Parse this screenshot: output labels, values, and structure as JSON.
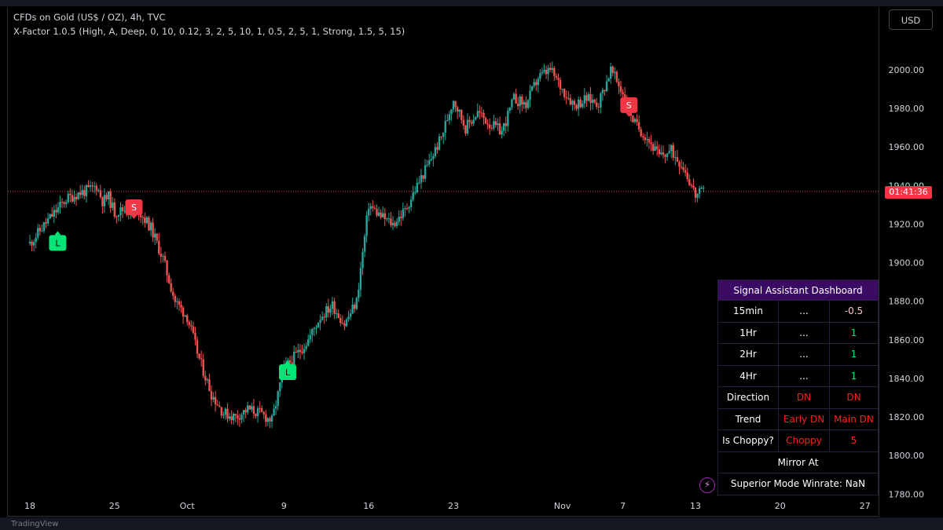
{
  "legend": {
    "symbol_line": "CFDs on Gold (US$ / OZ), 4h, TVC",
    "indicator_line": "X-Factor 1.0.5 (High, A, Deep, 0, 10, 0.12, 3, 2, 5, 10, 1, 0.5, 2, 5, 1, Strong, 1.5, 5, 15)"
  },
  "currency_button": "USD",
  "current_price_countdown": "01:41:36",
  "watermark": "TradingView",
  "colors": {
    "up": "#26a69a",
    "down": "#ef5350",
    "long_marker": "#00e676",
    "short_marker": "#f23645",
    "price_line": "#f23645"
  },
  "chart_data": {
    "type": "candlestick",
    "symbol": "CFDs on Gold (US$ / OZ)",
    "interval": "4h",
    "y_axis": {
      "range": [
        1775,
        2030
      ],
      "ticks": [
        1780,
        1800,
        1820,
        1840,
        1860,
        1880,
        1900,
        1920,
        1940,
        1960,
        1980,
        2000
      ],
      "tick_labels": [
        "1780.00",
        "1800.00",
        "1820.00",
        "1840.00",
        "1860.00",
        "1880.00",
        "1900.00",
        "1920.00",
        "1940.00",
        "1960.00",
        "1980.00",
        "2000.00"
      ]
    },
    "x_axis": {
      "tick_labels": [
        "18",
        "25",
        "Oct",
        "9",
        "16",
        "23",
        "Nov",
        "7",
        "13",
        "20",
        "27"
      ],
      "tick_days": [
        0,
        7,
        13,
        21,
        28,
        35,
        44,
        49,
        55,
        62,
        69
      ]
    },
    "current_price": 1937,
    "trend_path": [
      [
        0,
        1910
      ],
      [
        1.5,
        1922
      ],
      [
        3,
        1933
      ],
      [
        4,
        1936
      ],
      [
        5,
        1938
      ],
      [
        5.5,
        1940
      ],
      [
        6,
        1932
      ],
      [
        6.5,
        1934
      ],
      [
        7,
        1926
      ],
      [
        8,
        1928
      ],
      [
        9,
        1927
      ],
      [
        10,
        1918
      ],
      [
        11,
        1902
      ],
      [
        12,
        1880
      ],
      [
        13,
        1872
      ],
      [
        14,
        1850
      ],
      [
        15,
        1832
      ],
      [
        16,
        1822
      ],
      [
        17,
        1820
      ],
      [
        18,
        1824
      ],
      [
        19,
        1822
      ],
      [
        20,
        1818
      ],
      [
        21,
        1845
      ],
      [
        22,
        1852
      ],
      [
        23,
        1860
      ],
      [
        24,
        1872
      ],
      [
        25,
        1878
      ],
      [
        26,
        1868
      ],
      [
        27,
        1880
      ],
      [
        28,
        1930
      ],
      [
        29,
        1924
      ],
      [
        30,
        1920
      ],
      [
        31,
        1927
      ],
      [
        32,
        1940
      ],
      [
        33,
        1952
      ],
      [
        34,
        1965
      ],
      [
        35,
        1985
      ],
      [
        36,
        1970
      ],
      [
        37,
        1978
      ],
      [
        38,
        1972
      ],
      [
        39,
        1968
      ],
      [
        40,
        1985
      ],
      [
        41,
        1982
      ],
      [
        42,
        1996
      ],
      [
        43,
        2000
      ],
      [
        44,
        1990
      ],
      [
        45,
        1982
      ],
      [
        46,
        1985
      ],
      [
        47,
        1983
      ],
      [
        48,
        2000
      ],
      [
        49,
        1988
      ],
      [
        50,
        1972
      ],
      [
        51,
        1965
      ],
      [
        52,
        1955
      ],
      [
        53,
        1958
      ],
      [
        54,
        1950
      ],
      [
        55,
        1935
      ],
      [
        55.8,
        1937
      ]
    ],
    "signals": [
      {
        "label": "L",
        "type": "long",
        "day": 2.3,
        "price": 1918
      },
      {
        "label": "S",
        "type": "short",
        "day": 8.6,
        "price": 1921
      },
      {
        "label": "L",
        "type": "long",
        "day": 21.3,
        "price": 1851
      },
      {
        "label": "S",
        "type": "short",
        "day": 49.5,
        "price": 1974
      }
    ]
  },
  "dashboard": {
    "title": "Signal Assistant Dashboard",
    "rows": [
      {
        "label": "15min",
        "col2": "...",
        "col3": "-0.5",
        "col2_color": "#ffffff",
        "col3_color": "#f7c6c6"
      },
      {
        "label": "1Hr",
        "col2": "...",
        "col3": "1",
        "col2_color": "#ffffff",
        "col3_color": "#00e676"
      },
      {
        "label": "2Hr",
        "col2": "...",
        "col3": "1",
        "col2_color": "#ffffff",
        "col3_color": "#00e676"
      },
      {
        "label": "4Hr",
        "col2": "...",
        "col3": "1",
        "col2_color": "#ffffff",
        "col3_color": "#00e676"
      },
      {
        "label": "Direction",
        "col2": "DN",
        "col3": "DN",
        "col2_color": "#ff1e1e",
        "col3_color": "#ff1e1e"
      },
      {
        "label": "Trend",
        "col2": "Early DN",
        "col3": "Main DN",
        "col2_color": "#ff1e1e",
        "col3_color": "#ff1e1e"
      },
      {
        "label": "Is Choppy?",
        "col2": "Choppy",
        "col3": "5",
        "col2_color": "#ff1e1e",
        "col3_color": "#ff1e1e"
      }
    ],
    "mirror_label": "Mirror At",
    "winrate_label": "Superior Mode Winrate: NaN"
  }
}
